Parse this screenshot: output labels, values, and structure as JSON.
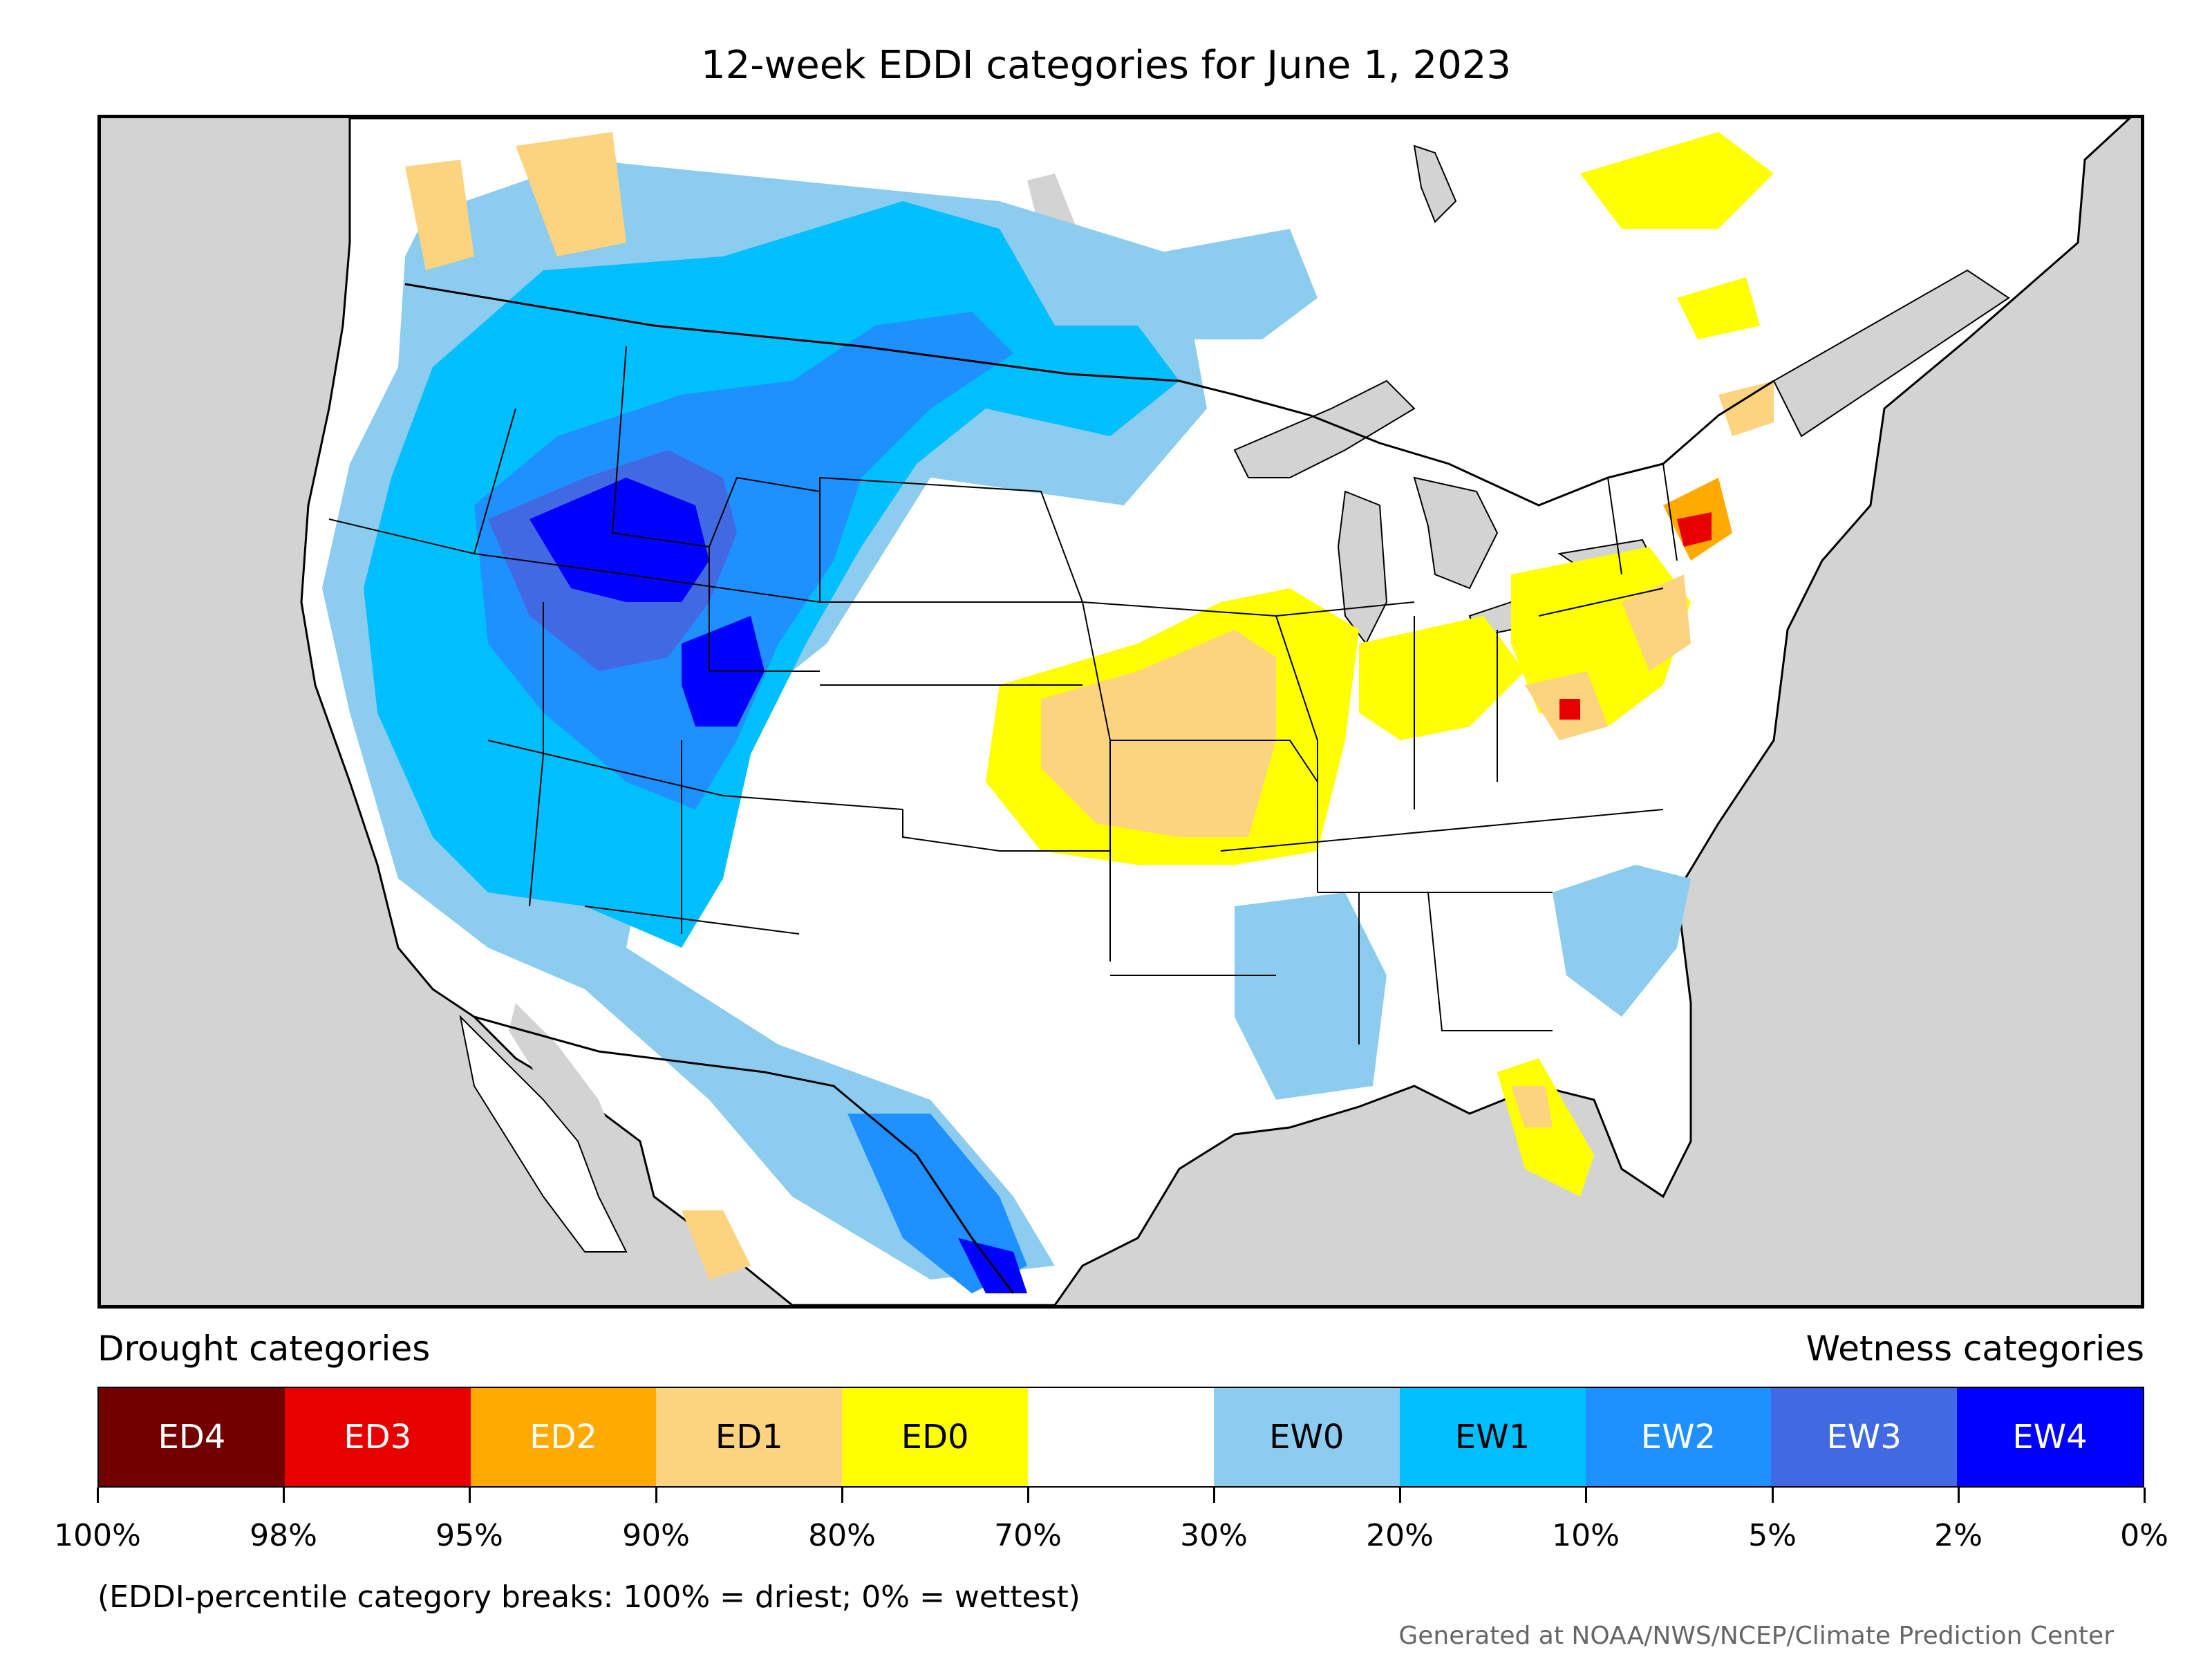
{
  "title": "12-week EDDI categories for June 1, 2023",
  "legend": {
    "drought_heading": "Drought categories",
    "wetness_heading": "Wetness categories",
    "categories": [
      {
        "label": "ED4",
        "color": "#730000",
        "text_color": "#ffffff"
      },
      {
        "label": "ED3",
        "color": "#e60000",
        "text_color": "#ffffff"
      },
      {
        "label": "ED2",
        "color": "#ffaa00",
        "text_color": "#ffffff"
      },
      {
        "label": "ED1",
        "color": "#fcd37f",
        "text_color": "#000000"
      },
      {
        "label": "ED0",
        "color": "#ffff00",
        "text_color": "#000000"
      },
      {
        "label": "",
        "color": "#ffffff",
        "text_color": "#000000"
      },
      {
        "label": "EW0",
        "color": "#8ccdef",
        "text_color": "#000000"
      },
      {
        "label": "EW1",
        "color": "#00bfff",
        "text_color": "#000000"
      },
      {
        "label": "EW2",
        "color": "#1e90ff",
        "text_color": "#ffffff"
      },
      {
        "label": "EW3",
        "color": "#4169e1",
        "text_color": "#ffffff"
      },
      {
        "label": "EW4",
        "color": "#0000ff",
        "text_color": "#ffffff"
      }
    ],
    "tick_labels": [
      "100%",
      "98%",
      "95%",
      "90%",
      "80%",
      "70%",
      "30%",
      "20%",
      "10%",
      "5%",
      "2%",
      "0%"
    ],
    "note": "(EDDI-percentile category breaks: 100% = driest; 0% = wettest)"
  },
  "credit": "Generated at NOAA/NWS/NCEP/Climate Prediction Center",
  "map": {
    "background_color": "#d3d3d3",
    "land_color": "#ffffff"
  }
}
